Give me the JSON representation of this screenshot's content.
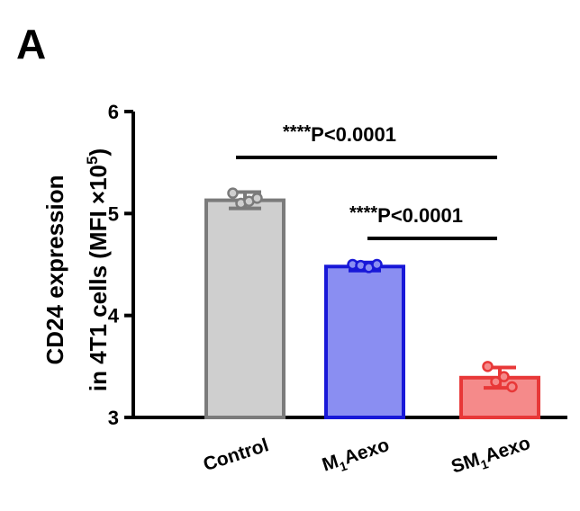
{
  "panel_letter": "A",
  "chart_data": {
    "type": "bar",
    "categories": [
      "Control",
      "M1Aexo",
      "SM1Aexo"
    ],
    "category_display": [
      {
        "main": "Control",
        "sub": "",
        "tail": ""
      },
      {
        "main": "M",
        "sub": "1",
        "tail": "Aexo"
      },
      {
        "main": "SM",
        "sub": "1",
        "tail": "Aexo"
      }
    ],
    "values": [
      5.13,
      4.48,
      3.39
    ],
    "errors": [
      0.08,
      0.04,
      0.1
    ],
    "points": [
      [
        5.2,
        5.1,
        5.12,
        5.15
      ],
      [
        4.5,
        4.49,
        4.47,
        4.5
      ],
      [
        3.5,
        3.35,
        3.4,
        3.3
      ]
    ],
    "ylim": [
      3,
      6
    ],
    "yticks": [
      3,
      4,
      5,
      6
    ],
    "ylabel_line1": "CD24 expression",
    "ylabel_line2": "in 4T1 cells (MFI ×10",
    "ylabel_sup": "5",
    "ylabel_close": ")",
    "bar_colors": {
      "fill": [
        "#cfcfcf",
        "#8a8ef2",
        "#f58a8a"
      ],
      "stroke": [
        "#7b7b7b",
        "#1818d8",
        "#e83838"
      ]
    },
    "significance": [
      {
        "from": 0,
        "to": 2,
        "stars": "****",
        "label": "P<0.0001"
      },
      {
        "from": 1,
        "to": 2,
        "stars": "****",
        "label": "P<0.0001"
      }
    ]
  }
}
